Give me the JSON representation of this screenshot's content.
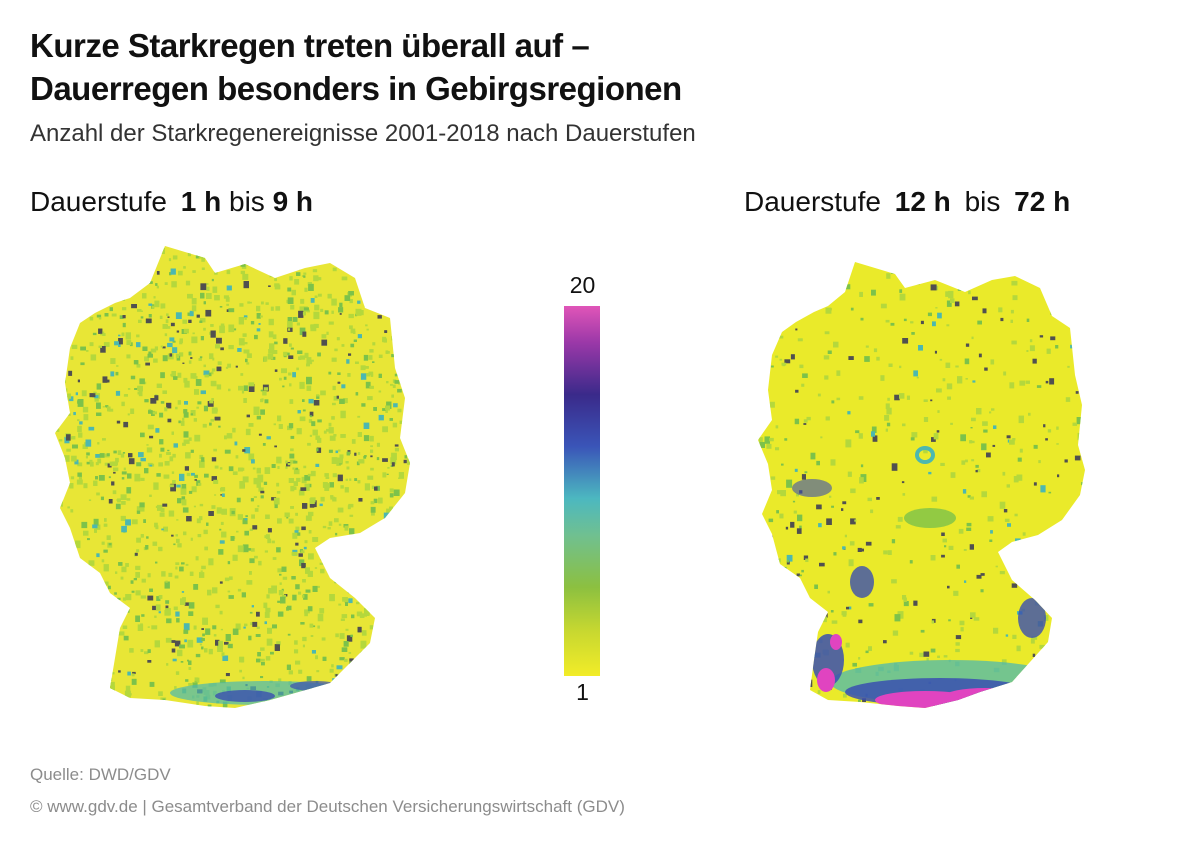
{
  "title": {
    "line1": "Kurze Starkregen treten überall auf –",
    "line2": "Dauerregen besonders in Gebirgsregionen"
  },
  "subtitle": "Anzahl der Starkregenereignisse 2001-2018 nach Dauerstufen",
  "panels": [
    {
      "prefix": "Dauerstufe",
      "from": "1 h",
      "between": "bis",
      "to": "9 h",
      "hotspots": "Süddeutschland, Alpenrand (schwach)"
    },
    {
      "prefix": "Dauerstufe",
      "from": "12 h",
      "between": "bis",
      "to": "72 h",
      "hotspots": "Alpenrand, Schwarzwald, Bayerischer Wald, Mittelgebirge"
    }
  ],
  "legend": {
    "max_label": "20",
    "min_label": "1",
    "colors": [
      "#f2ec28",
      "#c8d830",
      "#8cc040",
      "#70c090",
      "#4cb8c0",
      "#3a55b8",
      "#3a2a8a",
      "#9a38a8",
      "#e055b8"
    ]
  },
  "footer": {
    "source": "Quelle: DWD/GDV",
    "copyright": "© www.gdv.de | Gesamtverband der Deutschen Versicherungswirtschaft (GDV)"
  },
  "map_colors": {
    "base": "#e8e636",
    "light_green": "#b4d83c",
    "green": "#7cc24a",
    "teal": "#4cb8b0",
    "blue": "#3a4fb0",
    "dark_blue": "#2a2a80",
    "magenta": "#e044c0",
    "no_data": "#505050"
  }
}
